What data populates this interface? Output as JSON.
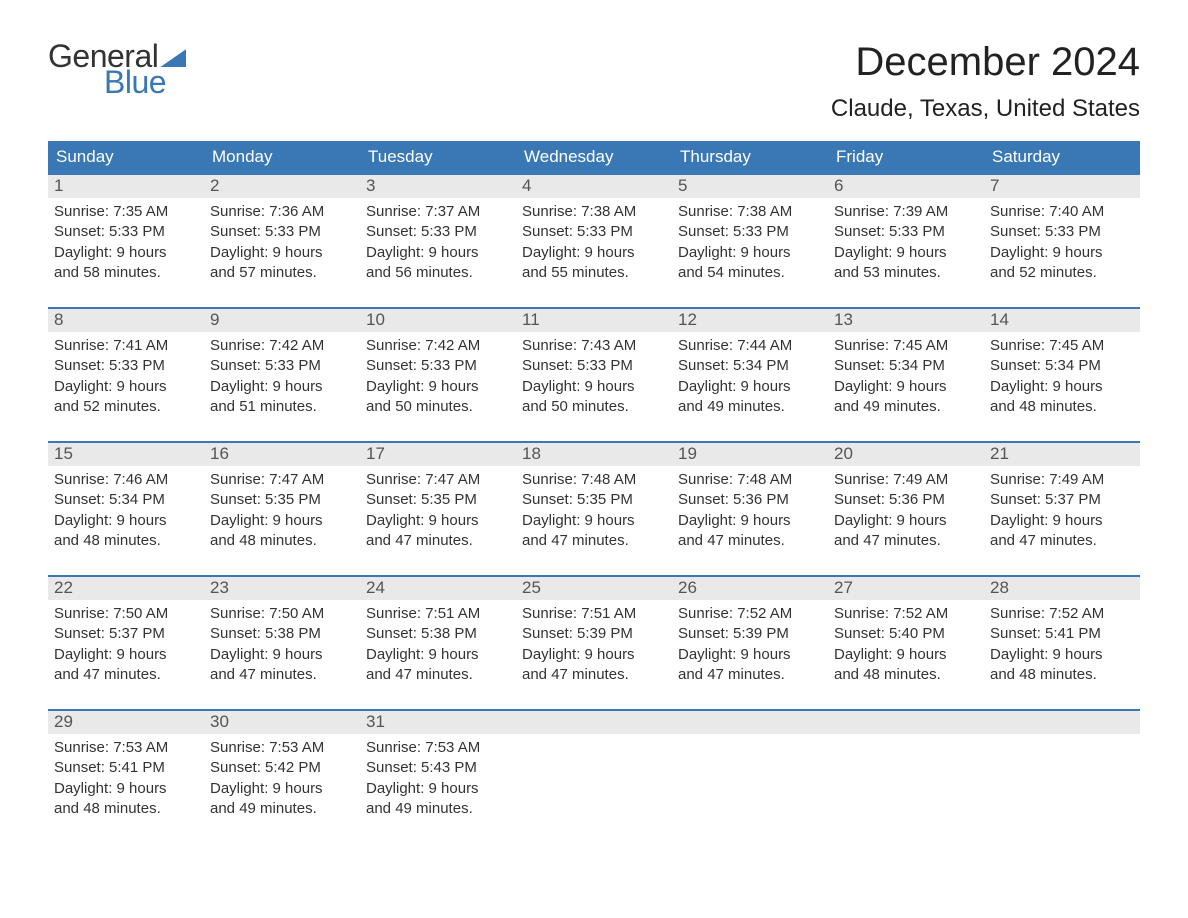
{
  "brand": {
    "word1": "General",
    "word2": "Blue",
    "accent_color": "#3a78b5"
  },
  "title": "December 2024",
  "location": "Claude, Texas, United States",
  "colors": {
    "header_bg": "#3a78b5",
    "header_text": "#ffffff",
    "daynum_bg": "#e9e9e9",
    "body_text": "#333333",
    "page_bg": "#ffffff"
  },
  "typography": {
    "title_fontsize": 40,
    "location_fontsize": 24,
    "header_fontsize": 17,
    "body_fontsize": 15
  },
  "day_headers": [
    "Sunday",
    "Monday",
    "Tuesday",
    "Wednesday",
    "Thursday",
    "Friday",
    "Saturday"
  ],
  "weeks": [
    [
      {
        "n": "1",
        "sr": "Sunrise: 7:35 AM",
        "ss": "Sunset: 5:33 PM",
        "d1": "Daylight: 9 hours",
        "d2": "and 58 minutes."
      },
      {
        "n": "2",
        "sr": "Sunrise: 7:36 AM",
        "ss": "Sunset: 5:33 PM",
        "d1": "Daylight: 9 hours",
        "d2": "and 57 minutes."
      },
      {
        "n": "3",
        "sr": "Sunrise: 7:37 AM",
        "ss": "Sunset: 5:33 PM",
        "d1": "Daylight: 9 hours",
        "d2": "and 56 minutes."
      },
      {
        "n": "4",
        "sr": "Sunrise: 7:38 AM",
        "ss": "Sunset: 5:33 PM",
        "d1": "Daylight: 9 hours",
        "d2": "and 55 minutes."
      },
      {
        "n": "5",
        "sr": "Sunrise: 7:38 AM",
        "ss": "Sunset: 5:33 PM",
        "d1": "Daylight: 9 hours",
        "d2": "and 54 minutes."
      },
      {
        "n": "6",
        "sr": "Sunrise: 7:39 AM",
        "ss": "Sunset: 5:33 PM",
        "d1": "Daylight: 9 hours",
        "d2": "and 53 minutes."
      },
      {
        "n": "7",
        "sr": "Sunrise: 7:40 AM",
        "ss": "Sunset: 5:33 PM",
        "d1": "Daylight: 9 hours",
        "d2": "and 52 minutes."
      }
    ],
    [
      {
        "n": "8",
        "sr": "Sunrise: 7:41 AM",
        "ss": "Sunset: 5:33 PM",
        "d1": "Daylight: 9 hours",
        "d2": "and 52 minutes."
      },
      {
        "n": "9",
        "sr": "Sunrise: 7:42 AM",
        "ss": "Sunset: 5:33 PM",
        "d1": "Daylight: 9 hours",
        "d2": "and 51 minutes."
      },
      {
        "n": "10",
        "sr": "Sunrise: 7:42 AM",
        "ss": "Sunset: 5:33 PM",
        "d1": "Daylight: 9 hours",
        "d2": "and 50 minutes."
      },
      {
        "n": "11",
        "sr": "Sunrise: 7:43 AM",
        "ss": "Sunset: 5:33 PM",
        "d1": "Daylight: 9 hours",
        "d2": "and 50 minutes."
      },
      {
        "n": "12",
        "sr": "Sunrise: 7:44 AM",
        "ss": "Sunset: 5:34 PM",
        "d1": "Daylight: 9 hours",
        "d2": "and 49 minutes."
      },
      {
        "n": "13",
        "sr": "Sunrise: 7:45 AM",
        "ss": "Sunset: 5:34 PM",
        "d1": "Daylight: 9 hours",
        "d2": "and 49 minutes."
      },
      {
        "n": "14",
        "sr": "Sunrise: 7:45 AM",
        "ss": "Sunset: 5:34 PM",
        "d1": "Daylight: 9 hours",
        "d2": "and 48 minutes."
      }
    ],
    [
      {
        "n": "15",
        "sr": "Sunrise: 7:46 AM",
        "ss": "Sunset: 5:34 PM",
        "d1": "Daylight: 9 hours",
        "d2": "and 48 minutes."
      },
      {
        "n": "16",
        "sr": "Sunrise: 7:47 AM",
        "ss": "Sunset: 5:35 PM",
        "d1": "Daylight: 9 hours",
        "d2": "and 48 minutes."
      },
      {
        "n": "17",
        "sr": "Sunrise: 7:47 AM",
        "ss": "Sunset: 5:35 PM",
        "d1": "Daylight: 9 hours",
        "d2": "and 47 minutes."
      },
      {
        "n": "18",
        "sr": "Sunrise: 7:48 AM",
        "ss": "Sunset: 5:35 PM",
        "d1": "Daylight: 9 hours",
        "d2": "and 47 minutes."
      },
      {
        "n": "19",
        "sr": "Sunrise: 7:48 AM",
        "ss": "Sunset: 5:36 PM",
        "d1": "Daylight: 9 hours",
        "d2": "and 47 minutes."
      },
      {
        "n": "20",
        "sr": "Sunrise: 7:49 AM",
        "ss": "Sunset: 5:36 PM",
        "d1": "Daylight: 9 hours",
        "d2": "and 47 minutes."
      },
      {
        "n": "21",
        "sr": "Sunrise: 7:49 AM",
        "ss": "Sunset: 5:37 PM",
        "d1": "Daylight: 9 hours",
        "d2": "and 47 minutes."
      }
    ],
    [
      {
        "n": "22",
        "sr": "Sunrise: 7:50 AM",
        "ss": "Sunset: 5:37 PM",
        "d1": "Daylight: 9 hours",
        "d2": "and 47 minutes."
      },
      {
        "n": "23",
        "sr": "Sunrise: 7:50 AM",
        "ss": "Sunset: 5:38 PM",
        "d1": "Daylight: 9 hours",
        "d2": "and 47 minutes."
      },
      {
        "n": "24",
        "sr": "Sunrise: 7:51 AM",
        "ss": "Sunset: 5:38 PM",
        "d1": "Daylight: 9 hours",
        "d2": "and 47 minutes."
      },
      {
        "n": "25",
        "sr": "Sunrise: 7:51 AM",
        "ss": "Sunset: 5:39 PM",
        "d1": "Daylight: 9 hours",
        "d2": "and 47 minutes."
      },
      {
        "n": "26",
        "sr": "Sunrise: 7:52 AM",
        "ss": "Sunset: 5:39 PM",
        "d1": "Daylight: 9 hours",
        "d2": "and 47 minutes."
      },
      {
        "n": "27",
        "sr": "Sunrise: 7:52 AM",
        "ss": "Sunset: 5:40 PM",
        "d1": "Daylight: 9 hours",
        "d2": "and 48 minutes."
      },
      {
        "n": "28",
        "sr": "Sunrise: 7:52 AM",
        "ss": "Sunset: 5:41 PM",
        "d1": "Daylight: 9 hours",
        "d2": "and 48 minutes."
      }
    ],
    [
      {
        "n": "29",
        "sr": "Sunrise: 7:53 AM",
        "ss": "Sunset: 5:41 PM",
        "d1": "Daylight: 9 hours",
        "d2": "and 48 minutes."
      },
      {
        "n": "30",
        "sr": "Sunrise: 7:53 AM",
        "ss": "Sunset: 5:42 PM",
        "d1": "Daylight: 9 hours",
        "d2": "and 49 minutes."
      },
      {
        "n": "31",
        "sr": "Sunrise: 7:53 AM",
        "ss": "Sunset: 5:43 PM",
        "d1": "Daylight: 9 hours",
        "d2": "and 49 minutes."
      },
      null,
      null,
      null,
      null
    ]
  ]
}
